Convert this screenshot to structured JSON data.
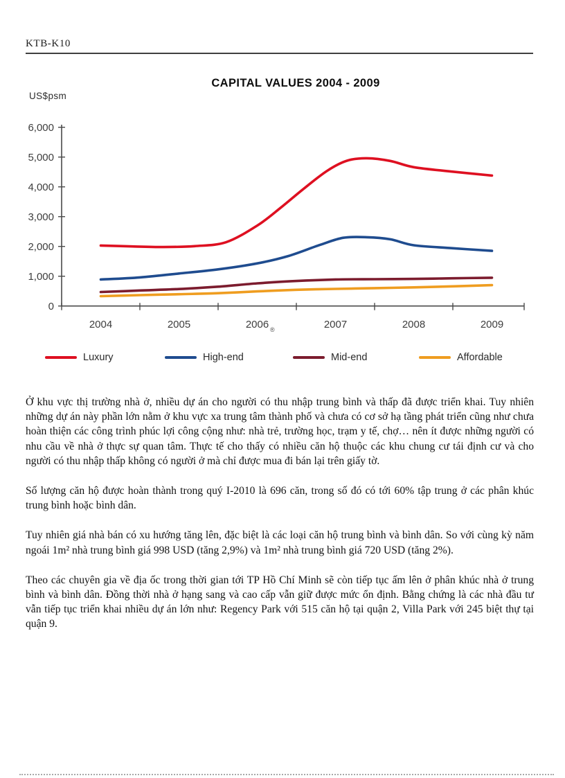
{
  "header": {
    "code": "KTB-K10"
  },
  "chart_data": {
    "type": "line",
    "title": "CAPITAL VALUES 2004 - 2009",
    "unit_label": "US$psm",
    "xlabel": "",
    "ylabel": "US$psm",
    "x": [
      2004,
      2005,
      2006,
      2007,
      2008,
      2009
    ],
    "xlim": [
      2004,
      2009
    ],
    "ylim": [
      0,
      6000
    ],
    "yticks": [
      0,
      1000,
      2000,
      3000,
      4000,
      5000,
      6000
    ],
    "ytick_labels": [
      "0",
      "1,000",
      "2,000",
      "3,000",
      "4,000",
      "5,000",
      "6,000"
    ],
    "grid": false,
    "legend_position": "bottom",
    "colors": {
      "axis": "#4a4a4a",
      "tick_text": "#3d3d3d"
    },
    "series": [
      {
        "name": "Luxury",
        "color": "#DE1021",
        "annual_values": [
          2030,
          2010,
          2700,
          4900,
          4650,
          4380
        ],
        "points": [
          [
            2004,
            2030
          ],
          [
            2004.4,
            2000
          ],
          [
            2004.8,
            1980
          ],
          [
            2005.2,
            2010
          ],
          [
            2005.6,
            2140
          ],
          [
            2006,
            2700
          ],
          [
            2006.3,
            3300
          ],
          [
            2006.6,
            3950
          ],
          [
            2006.9,
            4550
          ],
          [
            2007.15,
            4880
          ],
          [
            2007.4,
            4960
          ],
          [
            2007.7,
            4870
          ],
          [
            2008,
            4660
          ],
          [
            2008.5,
            4510
          ],
          [
            2009,
            4380
          ]
        ]
      },
      {
        "name": "High-end",
        "color": "#1F4C8F",
        "annual_values": [
          890,
          1090,
          1430,
          2300,
          2040,
          1850
        ],
        "points": [
          [
            2004,
            890
          ],
          [
            2004.5,
            960
          ],
          [
            2005,
            1090
          ],
          [
            2005.5,
            1230
          ],
          [
            2006,
            1430
          ],
          [
            2006.4,
            1680
          ],
          [
            2006.8,
            2050
          ],
          [
            2007.1,
            2290
          ],
          [
            2007.4,
            2310
          ],
          [
            2007.7,
            2240
          ],
          [
            2008,
            2040
          ],
          [
            2008.5,
            1940
          ],
          [
            2009,
            1850
          ]
        ]
      },
      {
        "name": "Mid-end",
        "color": "#7C1C2E",
        "annual_values": [
          470,
          570,
          760,
          890,
          910,
          950
        ],
        "points": [
          [
            2004,
            470
          ],
          [
            2004.5,
            520
          ],
          [
            2005,
            570
          ],
          [
            2005.5,
            650
          ],
          [
            2006,
            760
          ],
          [
            2006.5,
            840
          ],
          [
            2007,
            890
          ],
          [
            2007.5,
            900
          ],
          [
            2008,
            910
          ],
          [
            2008.5,
            930
          ],
          [
            2009,
            950
          ]
        ]
      },
      {
        "name": "Affordable",
        "color": "#EF9D20",
        "annual_values": [
          330,
          395,
          490,
          575,
          625,
          700
        ],
        "points": [
          [
            2004,
            330
          ],
          [
            2004.5,
            365
          ],
          [
            2005,
            395
          ],
          [
            2005.5,
            430
          ],
          [
            2006,
            490
          ],
          [
            2006.5,
            545
          ],
          [
            2007,
            575
          ],
          [
            2007.5,
            600
          ],
          [
            2008,
            625
          ],
          [
            2008.5,
            660
          ],
          [
            2009,
            700
          ]
        ]
      }
    ]
  },
  "annotations": {
    "registered_mark": "®"
  },
  "paragraphs": [
    "Ở khu vực thị trường nhà ở, nhiều dự án cho người có thu nhập trung bình và thấp đã được triển khai. Tuy nhiên những dự án này phần lớn nằm ở khu vực xa trung tâm thành phố và chưa có cơ sở hạ tầng phát triển cũng như chưa hoàn thiện các công trình phúc lợi công cộng như: nhà trẻ, trường học, trạm y tế, chợ… nên ít được những người có nhu cầu về nhà ở thực sự quan tâm. Thực tế cho thấy có nhiều căn hộ thuộc các khu chung cư tái định cư và cho người có thu nhập thấp không có người ở mà chỉ được mua đi bán lại trên giấy tờ.",
    "Số lượng căn hộ được hoàn thành trong quý I-2010 là 696 căn, trong số đó có tới 60% tập trung ở các phân khúc trung bình hoặc bình dân.",
    "Tuy nhiên giá nhà bán có xu hướng tăng lên, đặc biệt là các loại căn hộ trung bình và bình dân. So với cùng kỳ năm ngoái 1m² nhà trung bình giá 998 USD (tăng 2,9%) và 1m² nhà trung bình giá 720 USD (tăng 2%).",
    "Theo các chuyên gia về địa ốc trong thời gian tới TP Hồ Chí Minh sẽ còn tiếp tục ấm lên ở phân khúc nhà ở trung bình và bình dân. Đồng thời nhà ở hạng sang và cao cấp vẫn giữ được mức ổn định. Bằng chứng là các nhà đầu tư vẫn tiếp tục triển khai nhiều dự án lớn như: Regency Park với 515 căn hộ tại quận 2, Villa Park với 245 biệt thự tại quận 9."
  ]
}
